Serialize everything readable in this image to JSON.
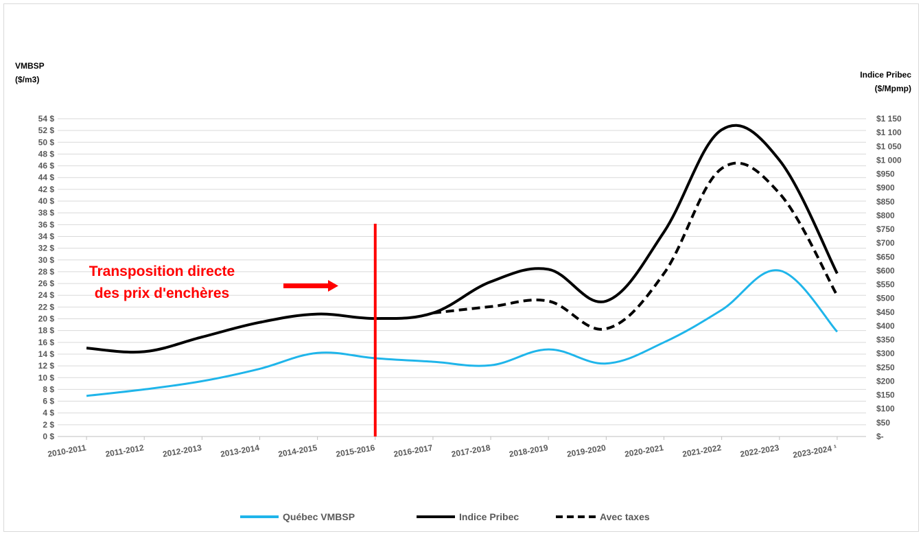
{
  "chart_data": {
    "type": "line",
    "categories": [
      "2010-2011",
      "2011-2012",
      "2012-2013",
      "2013-2014",
      "2014-2015",
      "2015-2016",
      "2016-2017",
      "2017-2018",
      "2018-2019",
      "2019-2020",
      "2020-2021",
      "2021-2022",
      "2022-2023",
      "2023-2024 ¹"
    ],
    "left_axis": {
      "title_lines": [
        "VMBSP",
        "($/m3)"
      ],
      "ylim": [
        0,
        54
      ],
      "ticks": [
        0,
        2,
        4,
        6,
        8,
        10,
        12,
        14,
        16,
        18,
        20,
        22,
        24,
        26,
        28,
        30,
        32,
        34,
        36,
        38,
        40,
        42,
        44,
        46,
        48,
        50,
        52,
        54
      ],
      "tick_labels": [
        "0 $",
        "2 $",
        "4 $",
        "6 $",
        "8 $",
        "10 $",
        "12 $",
        "14 $",
        "16 $",
        "18 $",
        "20 $",
        "22 $",
        "24 $",
        "26 $",
        "28 $",
        "30 $",
        "32 $",
        "34 $",
        "36 $",
        "38 $",
        "40 $",
        "42 $",
        "44 $",
        "46 $",
        "48 $",
        "50 $",
        "52 $",
        "54 $"
      ]
    },
    "right_axis": {
      "title_lines": [
        "Indice Pribec",
        "($/Mpmp)"
      ],
      "ylim": [
        0,
        1150
      ],
      "ticks": [
        0,
        50,
        100,
        150,
        200,
        250,
        300,
        350,
        400,
        450,
        500,
        550,
        600,
        650,
        700,
        750,
        800,
        850,
        900,
        950,
        1000,
        1050,
        1100,
        1150
      ],
      "tick_labels": [
        "$-",
        "$50",
        "$100",
        "$150",
        "$200",
        "$250",
        "$300",
        "$350",
        "$400",
        "$450",
        "$500",
        "$550",
        "$600",
        "$650",
        "$700",
        "$750",
        "$800",
        "$850",
        "$900",
        "$950",
        "$1 000",
        "$1 050",
        "$1 100",
        "$1 150"
      ]
    },
    "series": [
      {
        "name": "Québec VMBSP",
        "axis": "left",
        "color": "#1fb5ea",
        "dash": "solid",
        "values": [
          6.9,
          8.0,
          9.4,
          11.5,
          14.2,
          13.3,
          12.7,
          12.1,
          14.8,
          12.4,
          16.0,
          21.5,
          28.2,
          17.8
        ]
      },
      {
        "name": "Indice Pribec",
        "axis": "right",
        "color": "#000000",
        "dash": "solid",
        "values": [
          320,
          307,
          360,
          413,
          443,
          427,
          447,
          560,
          605,
          490,
          740,
          1110,
          1000,
          590
        ]
      },
      {
        "name": "Avec taxes",
        "axis": "right",
        "color": "#000000",
        "dash": "dashed",
        "values": [
          null,
          null,
          null,
          null,
          null,
          null,
          447,
          470,
          490,
          390,
          590,
          970,
          880,
          510
        ]
      }
    ],
    "grid": true,
    "legend_position": "bottom",
    "annotations": {
      "text_lines": [
        "Transposition directe",
        "des prix d'enchères"
      ],
      "color": "#ff0000",
      "vertical_line_at": "2015-2016",
      "arrow": "right"
    }
  }
}
